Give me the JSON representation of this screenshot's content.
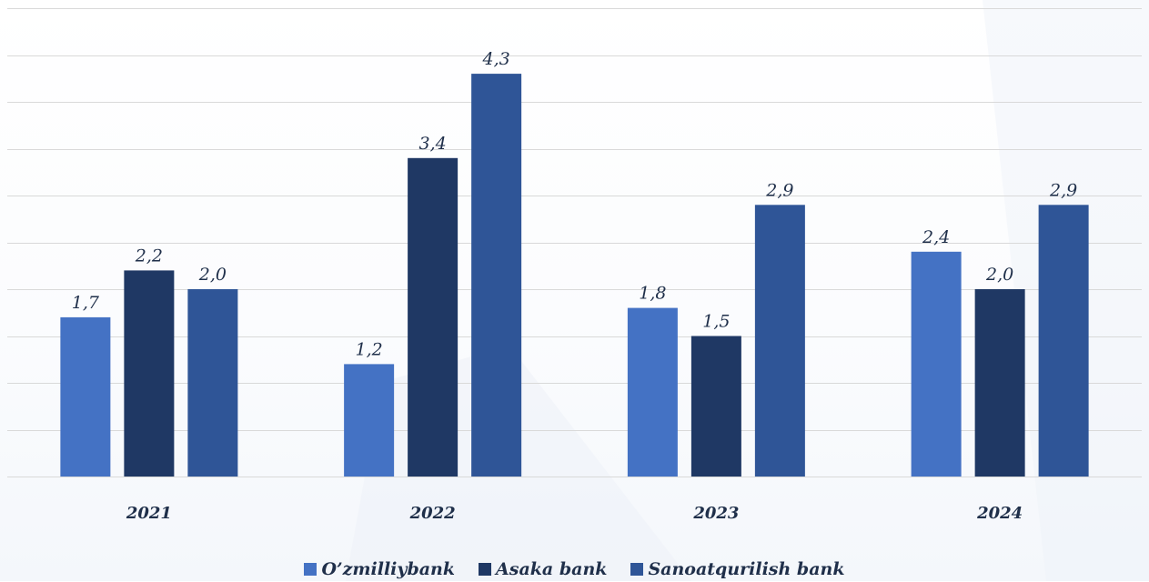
{
  "chart_data": {
    "type": "bar",
    "categories": [
      "2021",
      "2022",
      "2023",
      "2024"
    ],
    "series": [
      {
        "name": "O’zmilliybank",
        "color": "#4472c4",
        "values": [
          1.7,
          1.2,
          1.8,
          2.4
        ],
        "labels": [
          "1,7",
          "1,2",
          "1,8",
          "2,4"
        ]
      },
      {
        "name": "Asaka bank",
        "color": "#1f3864",
        "values": [
          2.2,
          3.4,
          1.5,
          2.0
        ],
        "labels": [
          "2,2",
          "3,4",
          "1,5",
          "2,0"
        ]
      },
      {
        "name": "Sanoatqurilish bank",
        "color": "#2f5597",
        "values": [
          2.0,
          4.3,
          2.9,
          2.9
        ],
        "labels": [
          "2,0",
          "4,3",
          "2,9",
          "2,9"
        ]
      }
    ],
    "ylim": [
      0,
      5.0
    ],
    "grid": true,
    "legend_position": "bottom",
    "gridline_color": "#d9d9d9"
  }
}
